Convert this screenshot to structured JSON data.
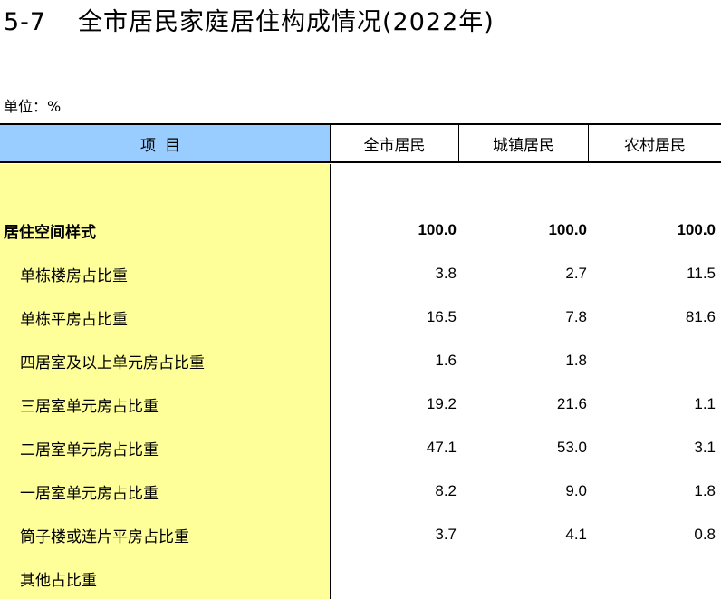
{
  "title": {
    "number": "5-7",
    "text": "全市居民家庭居住构成情况(2022年)"
  },
  "unit": "单位：%",
  "table": {
    "headers": {
      "item": "项目",
      "col1": "全市居民",
      "col2": "城镇居民",
      "col3": "农村居民"
    },
    "rows": [
      {
        "label": "居住空间样式",
        "v1": "100.0",
        "v2": "100.0",
        "v3": "100.0"
      },
      {
        "label": "单栋楼房占比重",
        "v1": "3.8",
        "v2": "2.7",
        "v3": "11.5"
      },
      {
        "label": "单栋平房占比重",
        "v1": "16.5",
        "v2": "7.8",
        "v3": "81.6"
      },
      {
        "label": "四居室及以上单元房占比重",
        "v1": "1.6",
        "v2": "1.8",
        "v3": ""
      },
      {
        "label": "三居室单元房占比重",
        "v1": "19.2",
        "v2": "21.6",
        "v3": "1.1"
      },
      {
        "label": "二居室单元房占比重",
        "v1": "47.1",
        "v2": "53.0",
        "v3": "3.1"
      },
      {
        "label": "一居室单元房占比重",
        "v1": "8.2",
        "v2": "9.0",
        "v3": "1.8"
      },
      {
        "label": "筒子楼或连片平房占比重",
        "v1": "3.7",
        "v2": "4.1",
        "v3": "0.8"
      },
      {
        "label": "其他占比重",
        "v1": "",
        "v2": "",
        "v3": ""
      }
    ]
  }
}
